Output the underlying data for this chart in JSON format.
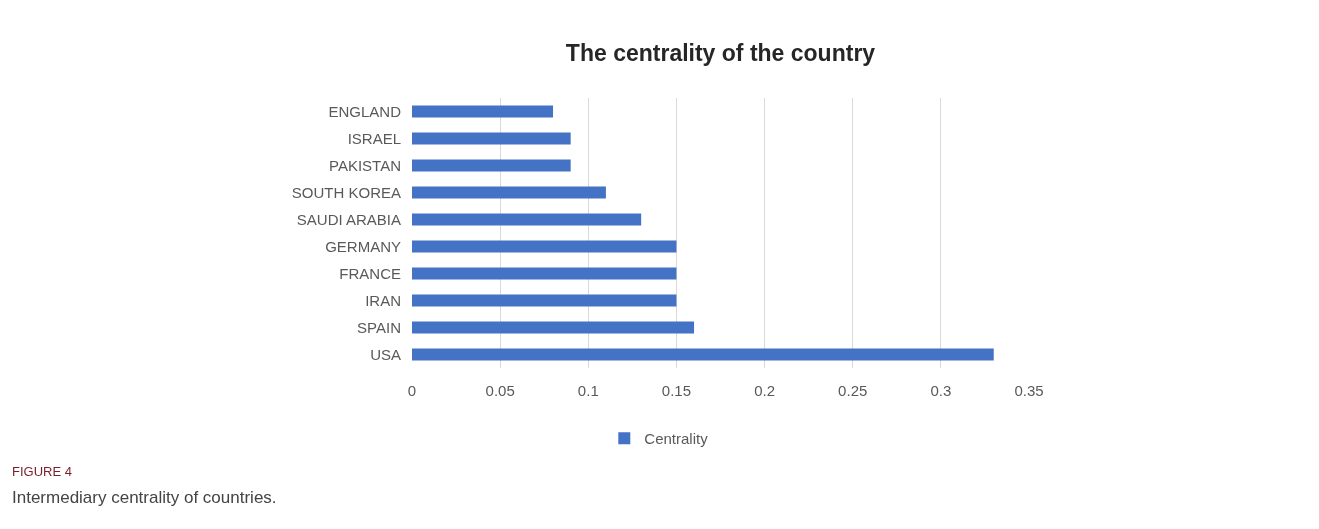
{
  "chart_data": {
    "type": "bar",
    "orientation": "horizontal",
    "title": "The centrality of the country",
    "categories": [
      "ENGLAND",
      "ISRAEL",
      "PAKISTAN",
      "SOUTH KOREA",
      "SAUDI ARABIA",
      "GERMANY",
      "FRANCE",
      "IRAN",
      "SPAIN",
      "USA"
    ],
    "series": [
      {
        "name": "Centrality",
        "color": "#4472c4",
        "values": [
          0.08,
          0.09,
          0.09,
          0.11,
          0.13,
          0.15,
          0.15,
          0.15,
          0.16,
          0.33
        ]
      }
    ],
    "xlim": [
      0,
      0.35
    ],
    "xticks": [
      0,
      0.05,
      0.1,
      0.15,
      0.2,
      0.25,
      0.3,
      0.35
    ],
    "grid": "x",
    "legend": "bottom",
    "annotations": [
      "FIGURE 4",
      "Intermediary centrality of countries."
    ]
  }
}
